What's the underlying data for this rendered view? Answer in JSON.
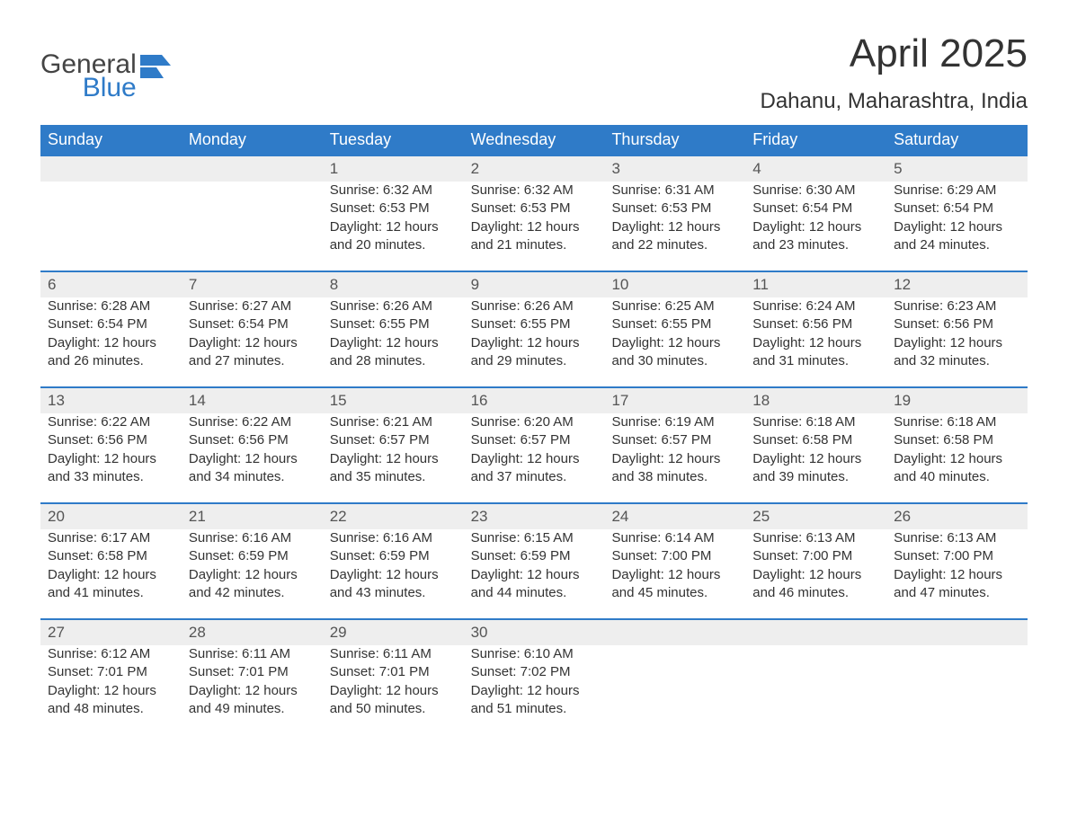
{
  "logo": {
    "word1": "General",
    "word2": "Blue"
  },
  "title": "April 2025",
  "location": "Dahanu, Maharashtra, India",
  "colors": {
    "header_bg": "#2f7bc8",
    "header_text": "#ffffff",
    "daynum_bg": "#eeeeee",
    "daynum_border": "#2f7bc8",
    "body_text": "#333333",
    "logo_gray": "#444444",
    "logo_blue": "#2f7bc8",
    "page_bg": "#ffffff"
  },
  "day_headers": [
    "Sunday",
    "Monday",
    "Tuesday",
    "Wednesday",
    "Thursday",
    "Friday",
    "Saturday"
  ],
  "weeks": [
    [
      {
        "n": "",
        "sunrise": "",
        "sunset": "",
        "daylight": ""
      },
      {
        "n": "",
        "sunrise": "",
        "sunset": "",
        "daylight": ""
      },
      {
        "n": "1",
        "sunrise": "Sunrise: 6:32 AM",
        "sunset": "Sunset: 6:53 PM",
        "daylight": "Daylight: 12 hours and 20 minutes."
      },
      {
        "n": "2",
        "sunrise": "Sunrise: 6:32 AM",
        "sunset": "Sunset: 6:53 PM",
        "daylight": "Daylight: 12 hours and 21 minutes."
      },
      {
        "n": "3",
        "sunrise": "Sunrise: 6:31 AM",
        "sunset": "Sunset: 6:53 PM",
        "daylight": "Daylight: 12 hours and 22 minutes."
      },
      {
        "n": "4",
        "sunrise": "Sunrise: 6:30 AM",
        "sunset": "Sunset: 6:54 PM",
        "daylight": "Daylight: 12 hours and 23 minutes."
      },
      {
        "n": "5",
        "sunrise": "Sunrise: 6:29 AM",
        "sunset": "Sunset: 6:54 PM",
        "daylight": "Daylight: 12 hours and 24 minutes."
      }
    ],
    [
      {
        "n": "6",
        "sunrise": "Sunrise: 6:28 AM",
        "sunset": "Sunset: 6:54 PM",
        "daylight": "Daylight: 12 hours and 26 minutes."
      },
      {
        "n": "7",
        "sunrise": "Sunrise: 6:27 AM",
        "sunset": "Sunset: 6:54 PM",
        "daylight": "Daylight: 12 hours and 27 minutes."
      },
      {
        "n": "8",
        "sunrise": "Sunrise: 6:26 AM",
        "sunset": "Sunset: 6:55 PM",
        "daylight": "Daylight: 12 hours and 28 minutes."
      },
      {
        "n": "9",
        "sunrise": "Sunrise: 6:26 AM",
        "sunset": "Sunset: 6:55 PM",
        "daylight": "Daylight: 12 hours and 29 minutes."
      },
      {
        "n": "10",
        "sunrise": "Sunrise: 6:25 AM",
        "sunset": "Sunset: 6:55 PM",
        "daylight": "Daylight: 12 hours and 30 minutes."
      },
      {
        "n": "11",
        "sunrise": "Sunrise: 6:24 AM",
        "sunset": "Sunset: 6:56 PM",
        "daylight": "Daylight: 12 hours and 31 minutes."
      },
      {
        "n": "12",
        "sunrise": "Sunrise: 6:23 AM",
        "sunset": "Sunset: 6:56 PM",
        "daylight": "Daylight: 12 hours and 32 minutes."
      }
    ],
    [
      {
        "n": "13",
        "sunrise": "Sunrise: 6:22 AM",
        "sunset": "Sunset: 6:56 PM",
        "daylight": "Daylight: 12 hours and 33 minutes."
      },
      {
        "n": "14",
        "sunrise": "Sunrise: 6:22 AM",
        "sunset": "Sunset: 6:56 PM",
        "daylight": "Daylight: 12 hours and 34 minutes."
      },
      {
        "n": "15",
        "sunrise": "Sunrise: 6:21 AM",
        "sunset": "Sunset: 6:57 PM",
        "daylight": "Daylight: 12 hours and 35 minutes."
      },
      {
        "n": "16",
        "sunrise": "Sunrise: 6:20 AM",
        "sunset": "Sunset: 6:57 PM",
        "daylight": "Daylight: 12 hours and 37 minutes."
      },
      {
        "n": "17",
        "sunrise": "Sunrise: 6:19 AM",
        "sunset": "Sunset: 6:57 PM",
        "daylight": "Daylight: 12 hours and 38 minutes."
      },
      {
        "n": "18",
        "sunrise": "Sunrise: 6:18 AM",
        "sunset": "Sunset: 6:58 PM",
        "daylight": "Daylight: 12 hours and 39 minutes."
      },
      {
        "n": "19",
        "sunrise": "Sunrise: 6:18 AM",
        "sunset": "Sunset: 6:58 PM",
        "daylight": "Daylight: 12 hours and 40 minutes."
      }
    ],
    [
      {
        "n": "20",
        "sunrise": "Sunrise: 6:17 AM",
        "sunset": "Sunset: 6:58 PM",
        "daylight": "Daylight: 12 hours and 41 minutes."
      },
      {
        "n": "21",
        "sunrise": "Sunrise: 6:16 AM",
        "sunset": "Sunset: 6:59 PM",
        "daylight": "Daylight: 12 hours and 42 minutes."
      },
      {
        "n": "22",
        "sunrise": "Sunrise: 6:16 AM",
        "sunset": "Sunset: 6:59 PM",
        "daylight": "Daylight: 12 hours and 43 minutes."
      },
      {
        "n": "23",
        "sunrise": "Sunrise: 6:15 AM",
        "sunset": "Sunset: 6:59 PM",
        "daylight": "Daylight: 12 hours and 44 minutes."
      },
      {
        "n": "24",
        "sunrise": "Sunrise: 6:14 AM",
        "sunset": "Sunset: 7:00 PM",
        "daylight": "Daylight: 12 hours and 45 minutes."
      },
      {
        "n": "25",
        "sunrise": "Sunrise: 6:13 AM",
        "sunset": "Sunset: 7:00 PM",
        "daylight": "Daylight: 12 hours and 46 minutes."
      },
      {
        "n": "26",
        "sunrise": "Sunrise: 6:13 AM",
        "sunset": "Sunset: 7:00 PM",
        "daylight": "Daylight: 12 hours and 47 minutes."
      }
    ],
    [
      {
        "n": "27",
        "sunrise": "Sunrise: 6:12 AM",
        "sunset": "Sunset: 7:01 PM",
        "daylight": "Daylight: 12 hours and 48 minutes."
      },
      {
        "n": "28",
        "sunrise": "Sunrise: 6:11 AM",
        "sunset": "Sunset: 7:01 PM",
        "daylight": "Daylight: 12 hours and 49 minutes."
      },
      {
        "n": "29",
        "sunrise": "Sunrise: 6:11 AM",
        "sunset": "Sunset: 7:01 PM",
        "daylight": "Daylight: 12 hours and 50 minutes."
      },
      {
        "n": "30",
        "sunrise": "Sunrise: 6:10 AM",
        "sunset": "Sunset: 7:02 PM",
        "daylight": "Daylight: 12 hours and 51 minutes."
      },
      {
        "n": "",
        "sunrise": "",
        "sunset": "",
        "daylight": ""
      },
      {
        "n": "",
        "sunrise": "",
        "sunset": "",
        "daylight": ""
      },
      {
        "n": "",
        "sunrise": "",
        "sunset": "",
        "daylight": ""
      }
    ]
  ]
}
